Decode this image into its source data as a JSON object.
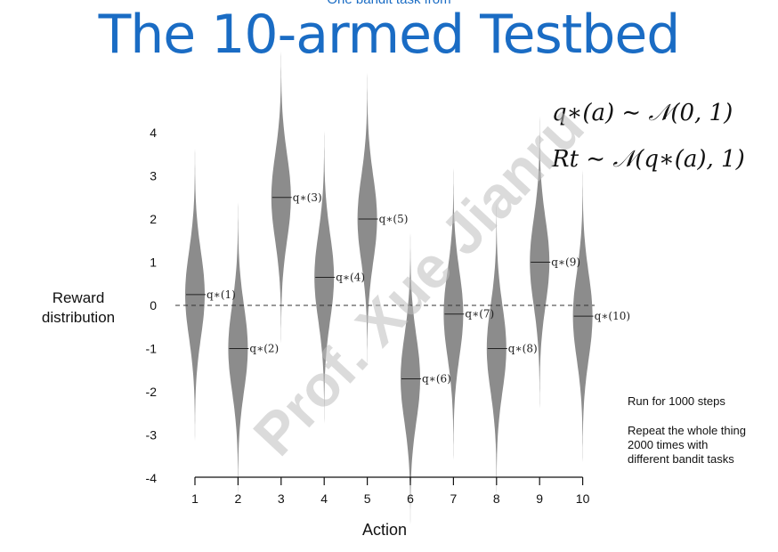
{
  "slide": {
    "top_text": "One bandit task from",
    "title": "The 10-armed Testbed",
    "formula_1": "q∗(a) ∼ 𝒩(0, 1)",
    "formula_2": "Rt ∼ 𝒩(q∗(a), 1)",
    "note_1": "Run for 1000 steps",
    "note_2": "Repeat the whole thing 2000 times with different bandit tasks",
    "watermark": "Prof. Xue Jianru"
  },
  "chart_data": {
    "type": "violin",
    "xlabel": "Action",
    "ylabel": "Reward distribution",
    "categories": [
      "1",
      "2",
      "3",
      "4",
      "5",
      "6",
      "7",
      "8",
      "9",
      "10"
    ],
    "means": [
      0.25,
      -1.0,
      2.5,
      0.65,
      2.0,
      -1.7,
      -0.2,
      -1.0,
      1.0,
      -0.25
    ],
    "mean_labels": [
      "q∗(1)",
      "q∗(2)",
      "q∗(3)",
      "q∗(4)",
      "q∗(5)",
      "q∗(6)",
      "q∗(7)",
      "q∗(8)",
      "q∗(9)",
      "q∗(10)"
    ],
    "stdev": 1,
    "yticks": [
      -4,
      -3,
      -2,
      -1,
      0,
      1,
      2,
      3,
      4
    ],
    "ylim": [
      -4,
      4
    ],
    "zero_line": "dashed",
    "fill_color": "#8c8c8c"
  }
}
